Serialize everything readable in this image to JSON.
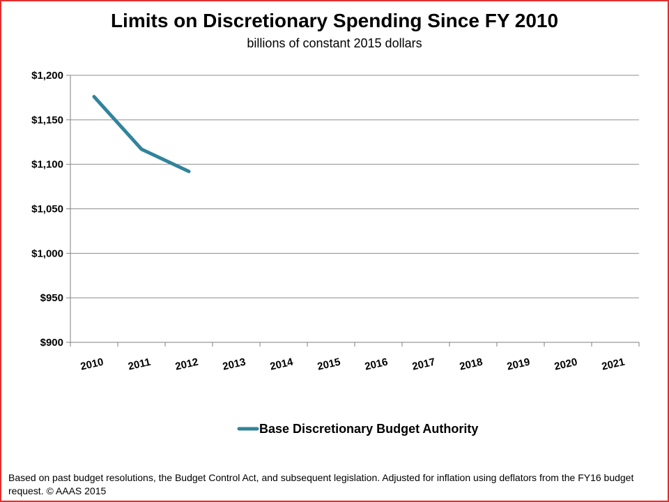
{
  "footnote": "Based on past budget resolutions, the Budget Control Act, and subsequent legislation.  Adjusted for inflation using deflators from the FY16 budget request. © AAAS 2015",
  "chart_data": {
    "type": "line",
    "title": "Limits on Discretionary Spending Since FY 2010",
    "subtitle": "billions of constant 2015 dollars",
    "categories": [
      "2010",
      "2011",
      "2012",
      "2013",
      "2014",
      "2015",
      "2016",
      "2017",
      "2018",
      "2019",
      "2020",
      "2021"
    ],
    "y_ticks": [
      "$900",
      "$950",
      "$1,000",
      "$1,050",
      "$1,100",
      "$1,150",
      "$1,200"
    ],
    "ylim": [
      900,
      1200
    ],
    "y_step": 50,
    "grid": true,
    "legend_position": "bottom-center",
    "series": [
      {
        "name": "Base Discretionary Budget Authority",
        "color": "#31849b",
        "values": [
          1176,
          1117,
          1092,
          null,
          null,
          null,
          null,
          null,
          null,
          null,
          null,
          null
        ]
      }
    ]
  }
}
